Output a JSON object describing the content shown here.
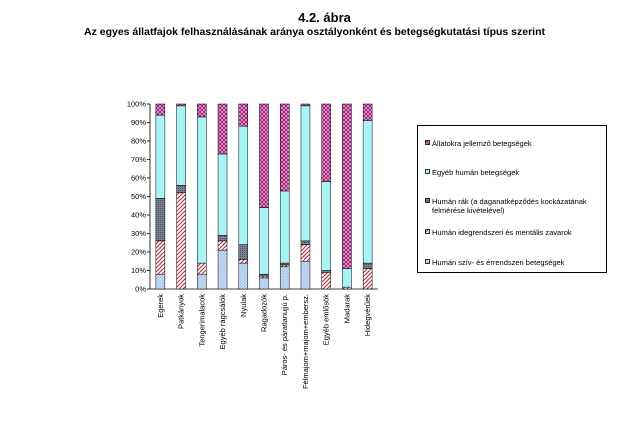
{
  "figure": {
    "number": "4.2. ábra",
    "title": "Az egyes állatfajok felhasználásának aránya osztályonként és betegségkutatási típus szerint"
  },
  "colors": {
    "hatch_red": "#b03040",
    "light_blue": "#a8c8e8",
    "dark_gray": "#606878",
    "cyan": "#a0f0f0",
    "magenta": "#c040a0"
  },
  "chart_data": {
    "type": "bar",
    "stacked": true,
    "percent": true,
    "categories": [
      "Egerek",
      "Patkányok",
      "Tengerimalacok",
      "Egyéb rágcsálók",
      "Nyulak",
      "Ragadozók",
      "Páros- és páratlanujjú p.",
      "Félmajom+majom+embersz.",
      "Egyéb emlősök",
      "Madarak",
      "Hidegvérűek"
    ],
    "yticks": [
      "0%",
      "10%",
      "20%",
      "30%",
      "40%",
      "50%",
      "60%",
      "70%",
      "80%",
      "90%",
      "100%"
    ],
    "ylim": [
      0,
      100
    ],
    "series": [
      {
        "name": "Humán szív- és érrendszeri betegségek",
        "pattern": "lightblue",
        "values": [
          8,
          0,
          8,
          21,
          14,
          6,
          12,
          15,
          0,
          0,
          0
        ]
      },
      {
        "name": "Humán idegrendszeri és mentális zavarok",
        "pattern": "hatch",
        "values": [
          18,
          52,
          6,
          5,
          2,
          1,
          1,
          9,
          9,
          1,
          11
        ]
      },
      {
        "name": "Humán rák (a daganatképződés kockázatának felmérése kivételével)",
        "pattern": "darkgray",
        "values": [
          23,
          4,
          0,
          3,
          8,
          1,
          1,
          2,
          1,
          0,
          3
        ]
      },
      {
        "name": "Egyéb humán betegségek",
        "pattern": "cyan",
        "values": [
          45,
          43,
          79,
          44,
          64,
          36,
          39,
          73,
          48,
          10,
          77
        ]
      },
      {
        "name": "Állatokra jellemző betegségek",
        "pattern": "magenta",
        "values": [
          6,
          1,
          7,
          27,
          12,
          56,
          47,
          1,
          42,
          89,
          9
        ]
      }
    ],
    "legend_position": "right"
  }
}
